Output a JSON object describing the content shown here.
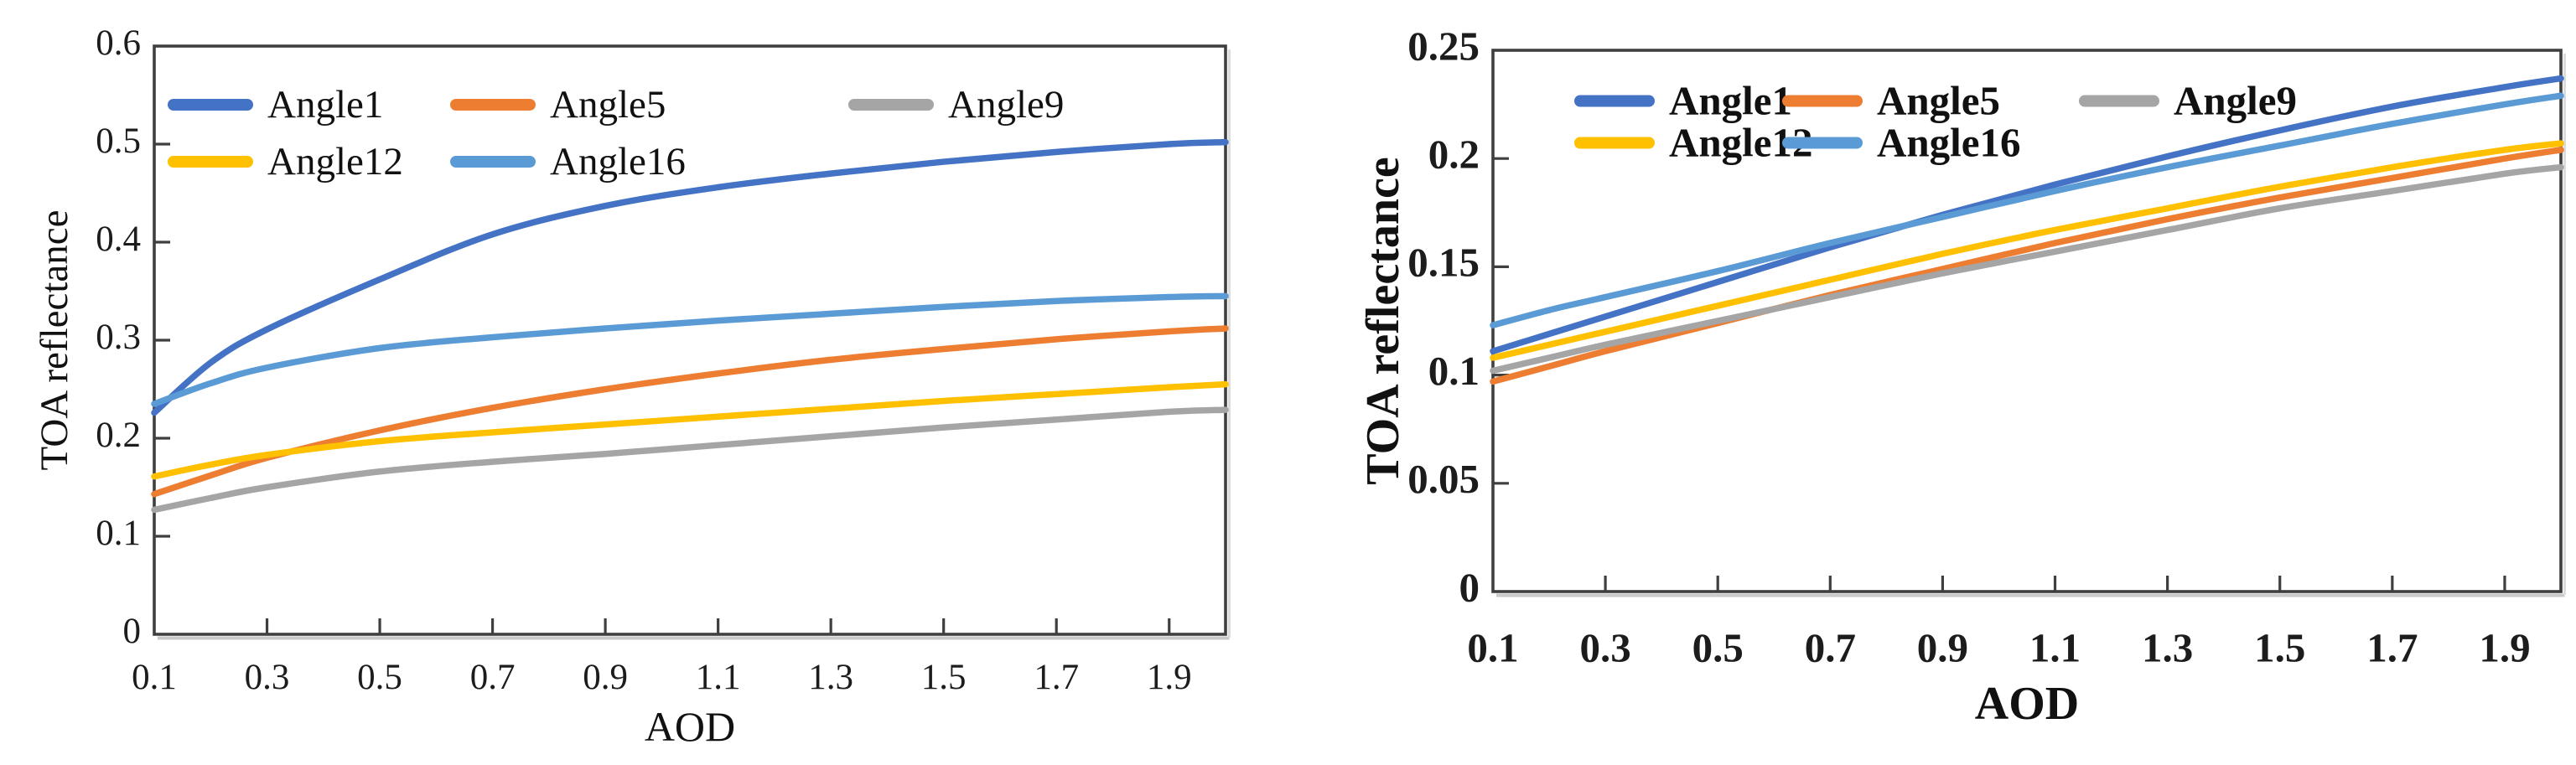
{
  "figure": {
    "background": "#ffffff",
    "frame_color": "#3f3f3f",
    "text_color": "#111111"
  },
  "chart_data": [
    {
      "type": "line",
      "title": "",
      "xlabel": "AOD",
      "ylabel": "TOA reflectance",
      "xlim": [
        0.1,
        2.0
      ],
      "ylim": [
        0,
        0.6
      ],
      "grid": false,
      "legend_position": "top-left inside plot, two rows, no border",
      "xtick_labels": [
        "0.1",
        "0.3",
        "0.5",
        "0.7",
        "0.9",
        "1.1",
        "1.3",
        "1.5",
        "1.7",
        "1.9"
      ],
      "xticks": [
        0.1,
        0.3,
        0.5,
        0.7,
        0.9,
        1.1,
        1.3,
        1.5,
        1.7,
        1.9
      ],
      "ytick_labels": [
        "0",
        "0.1",
        "0.2",
        "0.3",
        "0.4",
        "0.5",
        "0.6"
      ],
      "yticks": [
        0,
        0.1,
        0.2,
        0.3,
        0.4,
        0.5,
        0.6
      ],
      "x": [
        0.1,
        0.2,
        0.3,
        0.5,
        0.7,
        0.9,
        1.1,
        1.3,
        1.5,
        1.7,
        1.9,
        2.0
      ],
      "series": [
        {
          "name": "Angle1",
          "color": "#4472C4",
          "values": [
            0.226,
            0.277,
            0.311,
            0.362,
            0.408,
            0.437,
            0.456,
            0.47,
            0.482,
            0.492,
            0.5,
            0.502
          ]
        },
        {
          "name": "Angle5",
          "color": "#ED7D31",
          "values": [
            0.143,
            0.162,
            0.18,
            0.208,
            0.231,
            0.25,
            0.266,
            0.28,
            0.291,
            0.301,
            0.309,
            0.312
          ]
        },
        {
          "name": "Angle9",
          "color": "#A5A5A5",
          "values": [
            0.127,
            0.139,
            0.15,
            0.166,
            0.176,
            0.184,
            0.193,
            0.202,
            0.211,
            0.219,
            0.227,
            0.229
          ]
        },
        {
          "name": "Angle12",
          "color": "#FFC000",
          "values": [
            0.161,
            0.173,
            0.183,
            0.197,
            0.206,
            0.214,
            0.222,
            0.23,
            0.238,
            0.245,
            0.252,
            0.255
          ]
        },
        {
          "name": "Angle16",
          "color": "#5B9BD5",
          "values": [
            0.235,
            0.256,
            0.272,
            0.292,
            0.303,
            0.312,
            0.32,
            0.327,
            0.334,
            0.34,
            0.344,
            0.345
          ]
        }
      ]
    },
    {
      "type": "line",
      "title": "",
      "xlabel": "AOD",
      "ylabel": "TOA reflectance",
      "xlim": [
        0.1,
        2.0
      ],
      "ylim": [
        0,
        0.25
      ],
      "grid": false,
      "legend_position": "top-left inside plot, two rows, no border",
      "xtick_labels": [
        "0.1",
        "0.3",
        "0.5",
        "0.7",
        "0.9",
        "1.1",
        "1.3",
        "1.5",
        "1.7",
        "1.9"
      ],
      "xticks": [
        0.1,
        0.3,
        0.5,
        0.7,
        0.9,
        1.1,
        1.3,
        1.5,
        1.7,
        1.9
      ],
      "ytick_labels": [
        "0",
        "0.05",
        "0.1",
        "0.15",
        "0.2",
        "0.25"
      ],
      "yticks": [
        0,
        0.05,
        0.1,
        0.15,
        0.2,
        0.25
      ],
      "x": [
        0.1,
        0.2,
        0.3,
        0.5,
        0.7,
        0.9,
        1.1,
        1.3,
        1.5,
        1.7,
        1.9,
        2.0
      ],
      "series": [
        {
          "name": "Angle1",
          "color": "#4472C4",
          "values": [
            0.111,
            0.119,
            0.127,
            0.143,
            0.159,
            0.174,
            0.188,
            0.201,
            0.213,
            0.224,
            0.233,
            0.237
          ]
        },
        {
          "name": "Angle5",
          "color": "#ED7D31",
          "values": [
            0.097,
            0.104,
            0.111,
            0.124,
            0.137,
            0.149,
            0.161,
            0.172,
            0.182,
            0.191,
            0.2,
            0.204
          ]
        },
        {
          "name": "Angle9",
          "color": "#A5A5A5",
          "values": [
            0.102,
            0.108,
            0.114,
            0.125,
            0.136,
            0.147,
            0.157,
            0.167,
            0.177,
            0.185,
            0.193,
            0.196
          ]
        },
        {
          "name": "Angle12",
          "color": "#FFC000",
          "values": [
            0.108,
            0.114,
            0.12,
            0.132,
            0.144,
            0.156,
            0.167,
            0.177,
            0.187,
            0.196,
            0.204,
            0.207
          ]
        },
        {
          "name": "Angle16",
          "color": "#5B9BD5",
          "values": [
            0.123,
            0.13,
            0.136,
            0.148,
            0.161,
            0.173,
            0.185,
            0.196,
            0.206,
            0.216,
            0.225,
            0.229
          ]
        }
      ]
    }
  ]
}
